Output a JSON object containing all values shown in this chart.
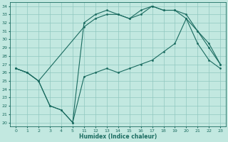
{
  "xlabel": "Humidex (Indice chaleur)",
  "bg_color": "#c2e8e0",
  "grid_color": "#90c8c0",
  "line_color": "#1a6b60",
  "xtick_labels": [
    "0",
    "1",
    "2",
    "3",
    "4",
    "5",
    "11",
    "12",
    "13",
    "14",
    "15",
    "16",
    "17",
    "18",
    "19",
    "20",
    "21",
    "22",
    "23"
  ],
  "yticks": [
    20,
    21,
    22,
    23,
    24,
    25,
    26,
    27,
    28,
    29,
    30,
    31,
    32,
    33,
    34
  ],
  "ylim": [
    19.5,
    34.5
  ],
  "line1_idx": [
    0,
    1,
    2,
    3,
    4,
    5,
    6,
    7,
    8,
    9,
    10,
    11,
    12,
    13,
    14,
    15,
    16,
    17,
    18
  ],
  "line1_y": [
    26.5,
    26.0,
    25.0,
    22.0,
    21.5,
    20.0,
    25.5,
    26.0,
    26.5,
    26.0,
    26.5,
    27.0,
    27.5,
    28.5,
    29.5,
    32.5,
    29.5,
    27.5,
    26.5
  ],
  "line2_idx": [
    0,
    1,
    2,
    6,
    7,
    8,
    9,
    10,
    11,
    12,
    13,
    14,
    15,
    16,
    17,
    18
  ],
  "line2_y": [
    26.5,
    26.0,
    25.0,
    31.5,
    32.5,
    33.0,
    33.0,
    32.5,
    33.0,
    34.0,
    33.5,
    33.5,
    32.5,
    31.0,
    29.0,
    27.0
  ],
  "line3_idx": [
    0,
    1,
    2,
    3,
    4,
    5,
    6,
    7,
    8,
    9,
    10,
    11,
    12,
    13,
    14,
    15,
    16,
    17,
    18
  ],
  "line3_y": [
    26.5,
    26.0,
    25.0,
    22.0,
    21.5,
    20.0,
    32.0,
    33.0,
    33.5,
    33.0,
    32.5,
    33.5,
    34.0,
    33.5,
    33.5,
    33.0,
    31.0,
    29.5,
    27.0
  ]
}
